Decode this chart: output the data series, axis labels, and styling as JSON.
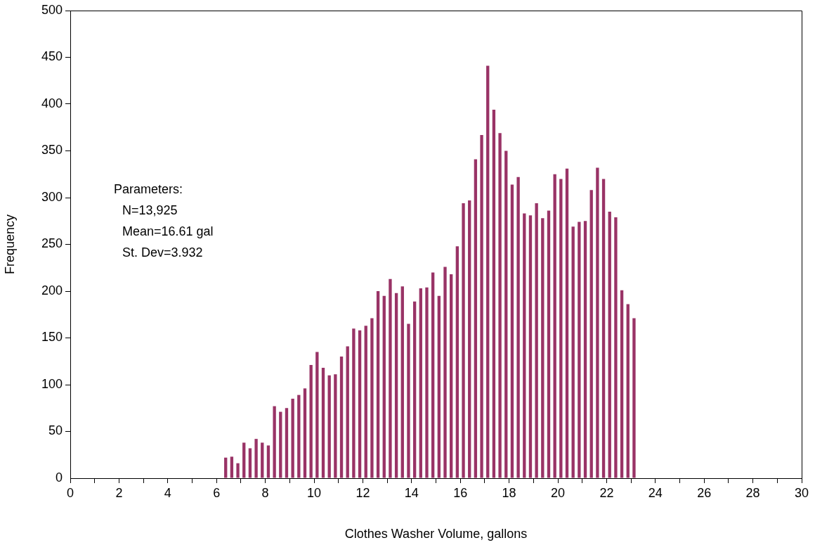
{
  "chart_data": {
    "type": "histogram",
    "xlabel": "Clothes Washer Volume, gallons",
    "ylabel": "Frequency",
    "bins": [
      6.25,
      6.5,
      6.75,
      7,
      7.25,
      7.5,
      7.75,
      8,
      8.25,
      8.5,
      8.75,
      9,
      9.25,
      9.5,
      9.75,
      10,
      10.25,
      10.5,
      10.75,
      11,
      11.25,
      11.5,
      11.75,
      12,
      12.25,
      12.5,
      12.75,
      13,
      13.25,
      13.5,
      13.75,
      14,
      14.25,
      14.5,
      14.75,
      15,
      15.25,
      15.5,
      15.75,
      16,
      16.25,
      16.5,
      16.75,
      17,
      17.25,
      17.5,
      17.75,
      18,
      18.25,
      18.5,
      18.75,
      19,
      19.25,
      19.5,
      19.75,
      20,
      20.25,
      20.5,
      20.75,
      21,
      21.25,
      21.5,
      21.75,
      22,
      22.25,
      22.5,
      22.75,
      23,
      23.25
    ],
    "values": [
      22,
      23,
      16,
      38,
      32,
      42,
      38,
      35,
      77,
      71,
      75,
      85,
      89,
      96,
      121,
      135,
      118,
      110,
      111,
      130,
      141,
      160,
      158,
      163,
      171,
      200,
      195,
      213,
      198,
      205,
      165,
      189,
      203,
      204,
      220,
      195,
      226,
      218,
      248,
      294,
      297,
      341,
      367,
      441,
      394,
      369,
      350,
      314,
      322,
      283,
      281,
      294,
      278,
      286,
      325,
      320,
      331,
      269,
      274,
      275,
      308,
      332,
      320,
      285,
      279,
      201,
      186,
      171
    ],
    "color": "#993366",
    "xlim": [
      0,
      30
    ],
    "xticks": [
      0,
      {
        "value": 1,
        "label": null
      },
      2,
      {
        "value": 3,
        "label": null
      },
      4,
      {
        "value": 5,
        "label": null
      },
      6,
      {
        "value": 7,
        "label": null
      },
      8,
      {
        "value": 9,
        "label": null
      },
      10,
      {
        "value": 11,
        "label": null
      },
      12,
      {
        "value": 13,
        "label": null
      },
      14,
      {
        "value": 15,
        "label": null
      },
      16,
      {
        "value": 17,
        "label": null
      },
      18,
      {
        "value": 19,
        "label": null
      },
      20,
      {
        "value": 21,
        "label": null
      },
      22,
      {
        "value": 23,
        "label": null
      },
      24,
      {
        "value": 25,
        "label": null
      },
      26,
      {
        "value": 27,
        "label": null
      },
      28,
      {
        "value": 29,
        "label": null
      },
      30
    ],
    "ylim": [
      0,
      500
    ],
    "yticks": [
      0,
      50,
      100,
      150,
      200,
      250,
      300,
      350,
      400,
      450,
      500
    ],
    "grid": false,
    "legend": false,
    "annotations": [
      "Parameters:",
      "N=13,925",
      "Mean=16.61 gal",
      "St. Dev=3.932"
    ]
  }
}
